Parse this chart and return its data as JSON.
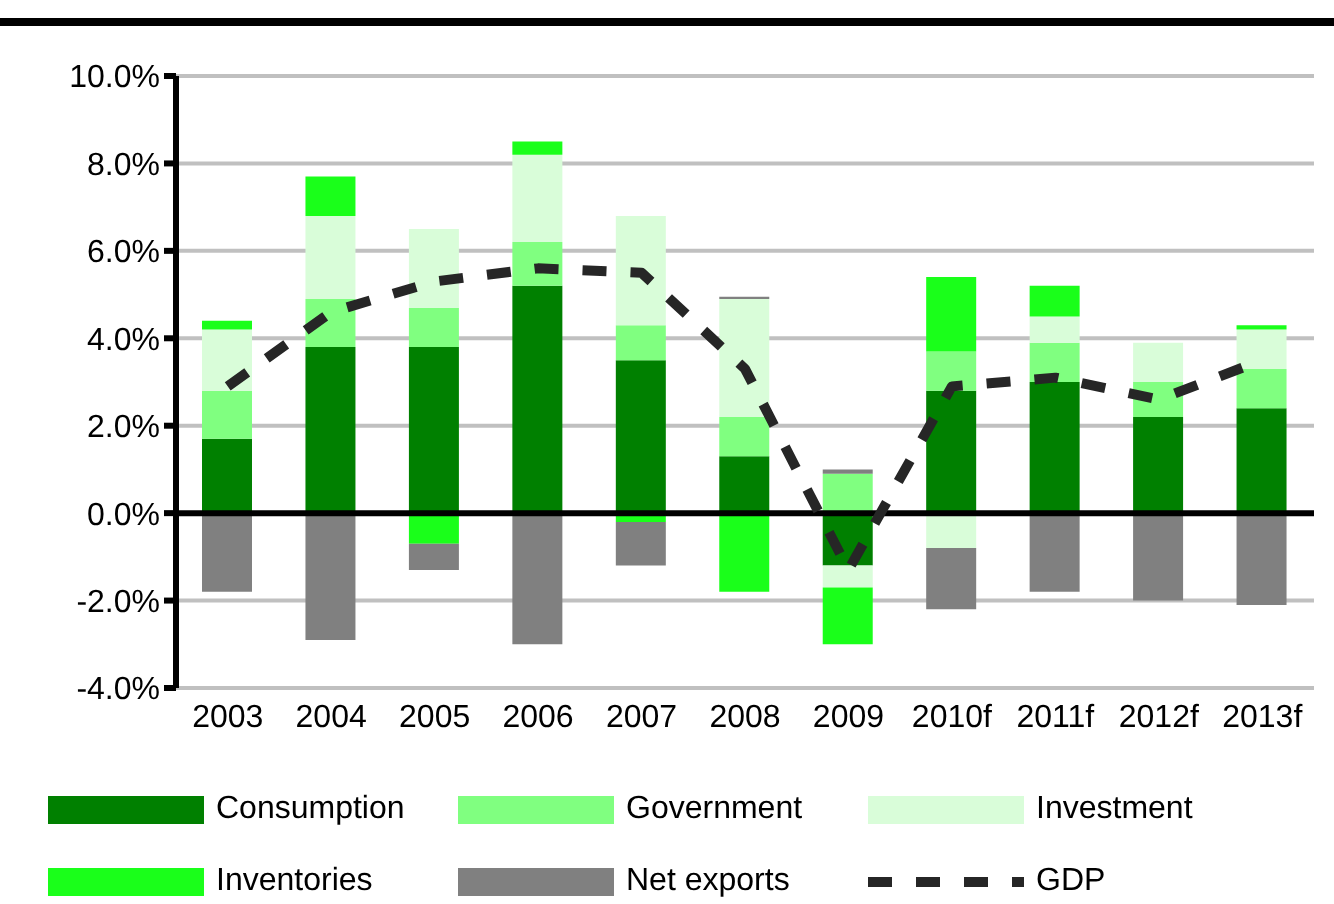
{
  "chart_data": {
    "type": "bar",
    "stacked": true,
    "categories": [
      "2003",
      "2004",
      "2005",
      "2006",
      "2007",
      "2008",
      "2009",
      "2010f",
      "2011f",
      "2012f",
      "2013f"
    ],
    "series": [
      {
        "name": "Consumption",
        "color": "#008000",
        "values": [
          1.7,
          3.8,
          3.8,
          5.2,
          3.5,
          1.3,
          -1.2,
          2.8,
          3.0,
          2.2,
          2.4
        ]
      },
      {
        "name": "Government",
        "color": "#80ff80",
        "values": [
          1.1,
          1.1,
          0.9,
          1.0,
          0.8,
          0.9,
          0.9,
          0.9,
          0.9,
          0.8,
          0.9
        ]
      },
      {
        "name": "Investment",
        "color": "#d9fdd9",
        "values": [
          1.4,
          1.9,
          1.8,
          2.0,
          2.5,
          2.7,
          -0.5,
          -0.8,
          0.6,
          0.9,
          0.9
        ]
      },
      {
        "name": "Inventories",
        "color": "#1aff1a",
        "values": [
          0.2,
          0.9,
          -0.7,
          0.3,
          -0.2,
          -1.8,
          -1.3,
          1.7,
          0.7,
          null,
          0.1
        ]
      },
      {
        "name": "Net exports",
        "color": "#808080",
        "values": [
          -1.8,
          -2.9,
          -0.6,
          -3.0,
          -1.0,
          0.05,
          0.1,
          -1.4,
          -1.8,
          -2.0,
          -2.1
        ]
      },
      {
        "name": "GDP",
        "type": "line",
        "color": "#262626",
        "line_style": "dashed",
        "values": [
          2.9,
          4.6,
          5.3,
          5.6,
          5.5,
          3.3,
          -1.3,
          2.9,
          3.1,
          2.6,
          3.5
        ]
      }
    ],
    "ylim": [
      -4,
      10
    ],
    "yticks": [
      {
        "value": -4,
        "label": "-4.0%"
      },
      {
        "value": -2,
        "label": "-2.0%"
      },
      {
        "value": 0,
        "label": "0.0%"
      },
      {
        "value": 2,
        "label": "2.0%"
      },
      {
        "value": 4,
        "label": "4.0%"
      },
      {
        "value": 6,
        "label": "6.0%"
      },
      {
        "value": 8,
        "label": "8.0%"
      },
      {
        "value": 10,
        "label": "10.0%"
      }
    ],
    "grid": "y",
    "legend": "bottom",
    "marker": "none"
  }
}
